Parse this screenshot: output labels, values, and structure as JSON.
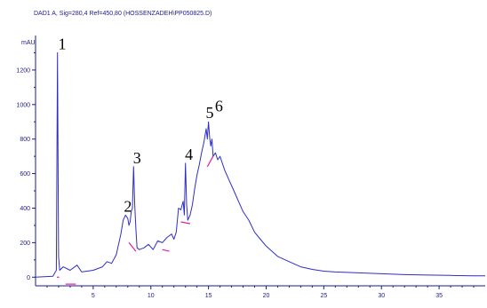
{
  "chart_data": {
    "type": "line",
    "title": "DAD1 A, Sig=280,4 Ref=450,80 (HOSSENZADEH\\PP050825.D)",
    "ylabel": "mAU",
    "xlabel": "",
    "xlim": [
      0,
      39
    ],
    "ylim": [
      -50,
      1400
    ],
    "x_ticks": [
      "5",
      "10",
      "15",
      "20",
      "25",
      "30",
      "35"
    ],
    "x_tick_values": [
      5,
      10,
      15,
      20,
      25,
      30,
      35
    ],
    "y_ticks": [
      "0",
      "200",
      "400",
      "600",
      "800",
      "1000",
      "1200"
    ],
    "y_tick_values": [
      0,
      200,
      400,
      600,
      800,
      1000,
      1200
    ],
    "grid": false,
    "colors": {
      "trace": "#2e2ec8",
      "baseline": "#e0209a",
      "axis": "#1a1a8c"
    },
    "series": [
      {
        "x": [
          0,
          1.5,
          1.8,
          1.9,
          2.0,
          2.1,
          2.4,
          3.0,
          3.6,
          4.0,
          5.0,
          5.8,
          6.2,
          6.6,
          7.0,
          7.4,
          7.6,
          7.8,
          8.0,
          8.1,
          8.2,
          8.3,
          8.4,
          8.5,
          8.6,
          8.7,
          8.8,
          9.0,
          9.4,
          9.8,
          10.2,
          10.6,
          11.0,
          11.4,
          11.8,
          12.0,
          12.2,
          12.4,
          12.6,
          12.8,
          12.9,
          13.0,
          13.1,
          13.2,
          13.4,
          13.6,
          13.8,
          14.0,
          14.2,
          14.4,
          14.6,
          14.8,
          14.9,
          15.0,
          15.1,
          15.2,
          15.3,
          15.4,
          15.6,
          15.8,
          16.0,
          16.4,
          16.8,
          17.2,
          17.6,
          18.0,
          18.5,
          19.0,
          19.5,
          20.0,
          21.0,
          22.0,
          23.0,
          24.0,
          25.0,
          26.0,
          28.0,
          30.0,
          32.0,
          34.0,
          36.0,
          38.0,
          39.0
        ],
        "y": [
          0,
          5,
          40,
          1300,
          120,
          40,
          60,
          40,
          70,
          30,
          40,
          60,
          90,
          80,
          130,
          250,
          330,
          360,
          340,
          300,
          320,
          380,
          400,
          640,
          420,
          280,
          170,
          160,
          170,
          190,
          160,
          210,
          200,
          230,
          250,
          220,
          260,
          400,
          390,
          440,
          360,
          660,
          420,
          330,
          360,
          420,
          510,
          590,
          650,
          720,
          780,
          860,
          800,
          900,
          810,
          760,
          800,
          700,
          720,
          680,
          700,
          620,
          560,
          500,
          440,
          380,
          330,
          260,
          220,
          180,
          120,
          90,
          60,
          45,
          35,
          30,
          25,
          20,
          15,
          12,
          10,
          8,
          8
        ]
      }
    ],
    "baselines": [
      {
        "x": [
          1.85,
          2.05
        ],
        "y": [
          0,
          0
        ]
      },
      {
        "x": [
          2.6,
          3.5
        ],
        "y": [
          -40,
          -40
        ]
      },
      {
        "x": [
          8.1,
          8.7
        ],
        "y": [
          200,
          150
        ]
      },
      {
        "x": [
          11.0,
          11.6
        ],
        "y": [
          160,
          150
        ]
      },
      {
        "x": [
          12.6,
          13.4
        ],
        "y": [
          320,
          310
        ]
      },
      {
        "x": [
          14.9,
          15.4
        ],
        "y": [
          640,
          700
        ]
      }
    ],
    "peak_labels": [
      {
        "text": "1",
        "x": 2.0,
        "y": 1300
      },
      {
        "text": "2",
        "x": 7.7,
        "y": 360
      },
      {
        "text": "3",
        "x": 8.5,
        "y": 640
      },
      {
        "text": "4",
        "x": 13.0,
        "y": 660
      },
      {
        "text": "5",
        "x": 14.8,
        "y": 900
      },
      {
        "text": "6",
        "x": 15.6,
        "y": 940
      }
    ]
  }
}
